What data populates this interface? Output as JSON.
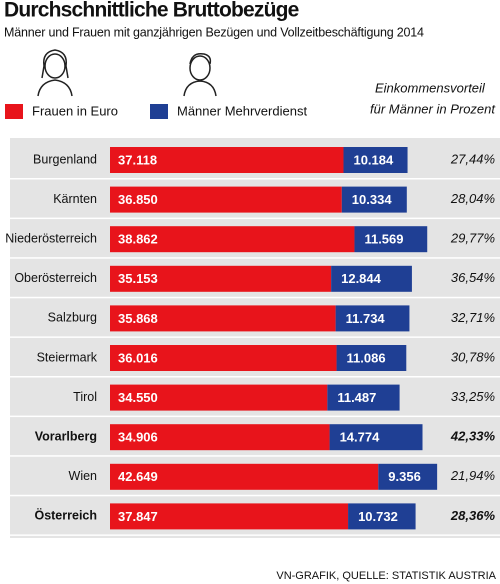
{
  "chart_data": {
    "type": "stacked-bar-horizontal",
    "title": "Durchschnittliche Bruttobezüge",
    "subtitle": "Männer und Frauen mit ganzjährigen Bezügen und Vollzeitbeschäftigung 2014",
    "categories": [
      "Burgenland",
      "Kärnten",
      "Niederösterreich",
      "Oberösterreich",
      "Salzburg",
      "Steiermark",
      "Tirol",
      "Vorarlberg",
      "Wien",
      "Österreich"
    ],
    "emphasis": [
      7,
      9
    ],
    "xlim": [
      0,
      62000
    ],
    "series": [
      {
        "name": "Frauen in Euro",
        "color": "#e8141b",
        "values": [
          37118,
          36850,
          38862,
          35153,
          35868,
          36016,
          34550,
          34906,
          42649,
          37847
        ],
        "value_labels": [
          "37.118",
          "36.850",
          "38.862",
          "35.153",
          "35.868",
          "36.016",
          "34.550",
          "34.906",
          "42.649",
          "37.847"
        ]
      },
      {
        "name": "Männer Mehrverdienst",
        "color": "#1f3f94",
        "values": [
          10184,
          10334,
          11569,
          12844,
          11734,
          11086,
          11487,
          14774,
          9356,
          10732
        ],
        "value_labels": [
          "10.184",
          "10.334",
          "11.569",
          "12.844",
          "11.734",
          "11.086",
          "11.487",
          "14.774",
          "9.356",
          "10.732"
        ]
      }
    ],
    "percent": {
      "title": [
        "Einkommensvorteil",
        "für Männer in Prozent"
      ],
      "values": [
        27.44,
        28.04,
        29.77,
        36.54,
        32.71,
        30.78,
        33.25,
        42.33,
        21.94,
        28.36
      ],
      "value_labels": [
        "27,44%",
        "28,04%",
        "29,77%",
        "36,54%",
        "32,71%",
        "30,78%",
        "33,25%",
        "42,33%",
        "21,94%",
        "28,36%"
      ]
    },
    "source": "VN-GRAFIK, QUELLE: STATISTIK AUSTRIA"
  }
}
